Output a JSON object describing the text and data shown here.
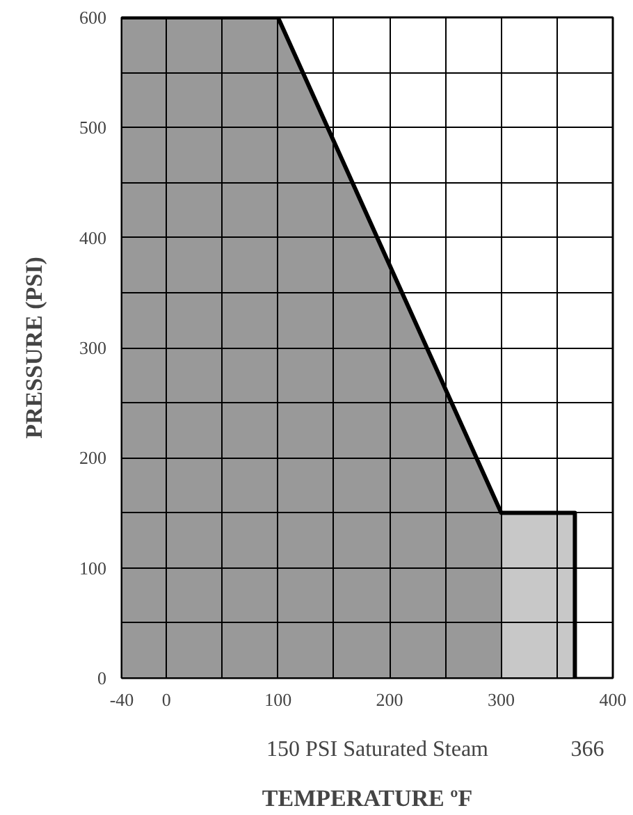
{
  "chart_data": {
    "type": "area",
    "xlabel": "TEMPERATURE ºF",
    "ylabel": "PRESSURE (PSI)",
    "series": [
      {
        "color": "#999999",
        "x": [
          -40,
          100,
          300
        ],
        "values": [
          600,
          600,
          150
        ]
      },
      {
        "color": "#c8c8c8",
        "x": [
          300,
          366
        ],
        "values": [
          150,
          150
        ]
      },
      {
        "type": "line",
        "color": "#000000",
        "x": [
          -40,
          100,
          300,
          366,
          366
        ],
        "values": [
          600,
          600,
          150,
          150,
          0
        ]
      }
    ],
    "xlim": [
      -40,
      400
    ],
    "ylim": [
      0,
      600
    ],
    "xticks": [
      -40,
      0,
      {
        "value": 50,
        "label": null
      },
      100,
      {
        "value": 150,
        "label": null
      },
      200,
      {
        "value": 250,
        "label": null
      },
      300,
      {
        "value": 350,
        "label": null
      },
      400
    ],
    "yticks": [
      0,
      {
        "value": 50,
        "label": null
      },
      100,
      {
        "value": 150,
        "label": null
      },
      200,
      {
        "value": 250,
        "label": null
      },
      300,
      {
        "value": 350,
        "label": null
      },
      400,
      {
        "value": 450,
        "label": null
      },
      500,
      {
        "value": 550,
        "label": null
      },
      600
    ],
    "grid": true,
    "annotations": [
      "150 PSI Saturated Steam",
      "366"
    ]
  }
}
